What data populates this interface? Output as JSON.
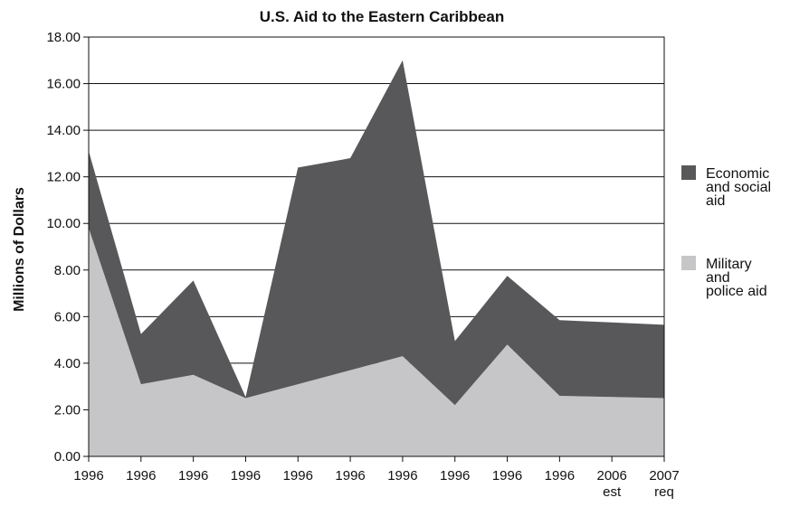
{
  "chart_data": {
    "type": "area",
    "stacked": true,
    "title": "U.S. Aid to the Eastern Caribbean",
    "ylabel": "Millions of Dollars",
    "xlabel": "",
    "ylim": [
      0,
      18
    ],
    "yticks": [
      "0.00",
      "2.00",
      "4.00",
      "6.00",
      "8.00",
      "10.00",
      "12.00",
      "14.00",
      "16.00",
      "18.00"
    ],
    "categories": [
      {
        "label": "1996",
        "sub": ""
      },
      {
        "label": "1996",
        "sub": ""
      },
      {
        "label": "1996",
        "sub": ""
      },
      {
        "label": "1996",
        "sub": ""
      },
      {
        "label": "1996",
        "sub": ""
      },
      {
        "label": "1996",
        "sub": ""
      },
      {
        "label": "1996",
        "sub": ""
      },
      {
        "label": "1996",
        "sub": ""
      },
      {
        "label": "1996",
        "sub": ""
      },
      {
        "label": "1996",
        "sub": ""
      },
      {
        "label": "2006",
        "sub": "est"
      },
      {
        "label": "2007",
        "sub": "req"
      }
    ],
    "series": [
      {
        "name": "Military and police aid",
        "legend_lines": [
          "Military",
          "and",
          "police aid"
        ],
        "color": "#c6c6c8",
        "values": [
          9.8,
          3.1,
          3.5,
          2.5,
          3.1,
          3.7,
          4.3,
          2.2,
          4.8,
          2.6,
          2.55,
          2.5
        ]
      },
      {
        "name": "Economic and social aid",
        "legend_lines": [
          "Economic",
          "and social",
          "aid"
        ],
        "color": "#58585a",
        "values": [
          3.3,
          2.15,
          4.05,
          0.05,
          9.3,
          9.1,
          12.7,
          2.75,
          2.95,
          3.25,
          3.2,
          3.15
        ]
      }
    ],
    "grid": true,
    "legend_position": "right"
  }
}
